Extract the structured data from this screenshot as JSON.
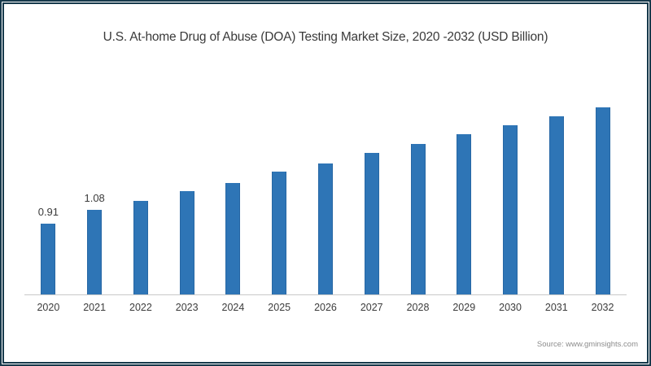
{
  "source": "Source: www.gminsights.com",
  "colors": {
    "bar": "#2e75b6",
    "bar_edge": "#2767a4",
    "frame": "#16394b",
    "axis_line": "#c9c9c9",
    "title_text": "#3a3a3a",
    "source_text": "#8c8c8c"
  },
  "chart_data": {
    "type": "bar",
    "title": "U.S. At-home Drug of Abuse (DOA) Testing Market Size, 2020 -2032 (USD Billion)",
    "categories": [
      "2020",
      "2021",
      "2022",
      "2023",
      "2024",
      "2025",
      "2026",
      "2027",
      "2028",
      "2029",
      "2030",
      "2031",
      "2032"
    ],
    "values": [
      0.91,
      1.08,
      1.2,
      1.32,
      1.43,
      1.57,
      1.68,
      1.81,
      1.93,
      2.05,
      2.17,
      2.28,
      2.4
    ],
    "data_labels": [
      "0.91",
      "1.08",
      "",
      "",
      "",
      "",
      "",
      "",
      "",
      "",
      "",
      "",
      ""
    ],
    "xlabel": "",
    "ylabel": "",
    "ylim": [
      0,
      2.5
    ],
    "grid": false,
    "legend": "none",
    "y_axis_visible": false
  }
}
